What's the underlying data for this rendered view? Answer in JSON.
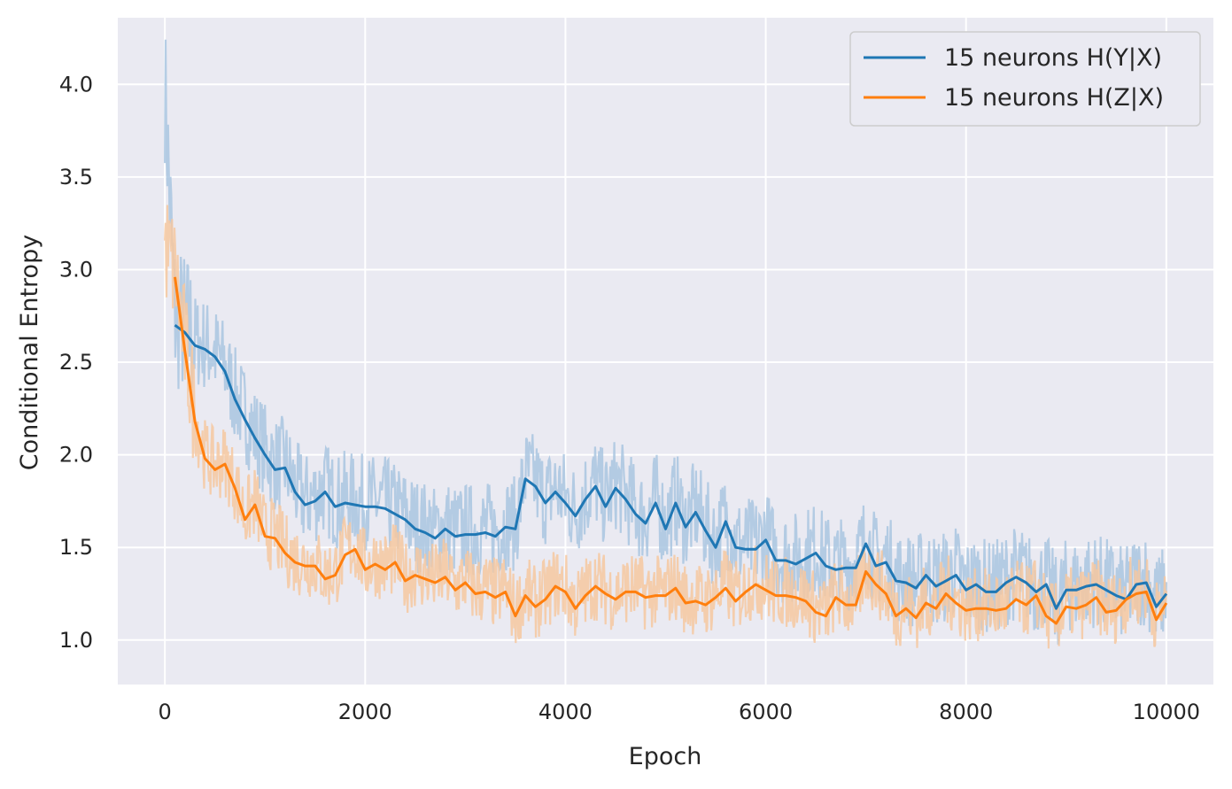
{
  "chart_data": {
    "type": "line",
    "xlabel": "Epoch",
    "ylabel": "Conditional Entropy",
    "xlim": [
      -470,
      10470
    ],
    "ylim": [
      0.76,
      4.36
    ],
    "xticks": [
      0,
      2000,
      4000,
      6000,
      8000,
      10000
    ],
    "xtick_labels": [
      "0",
      "2000",
      "4000",
      "6000",
      "8000",
      "10000"
    ],
    "yticks": [
      1.0,
      1.5,
      2.0,
      2.5,
      3.0,
      3.5,
      4.0
    ],
    "ytick_labels": [
      "1.0",
      "1.5",
      "2.0",
      "2.5",
      "3.0",
      "3.5",
      "4.0"
    ],
    "grid": true,
    "legend_position": "top-right",
    "x": [
      100,
      200,
      300,
      400,
      500,
      600,
      700,
      800,
      900,
      1000,
      1100,
      1200,
      1300,
      1400,
      1500,
      1600,
      1700,
      1800,
      1900,
      2000,
      2100,
      2200,
      2300,
      2400,
      2500,
      2600,
      2700,
      2800,
      2900,
      3000,
      3100,
      3200,
      3300,
      3400,
      3500,
      3600,
      3700,
      3800,
      3900,
      4000,
      4100,
      4200,
      4300,
      4400,
      4500,
      4600,
      4700,
      4800,
      4900,
      5000,
      5100,
      5200,
      5300,
      5400,
      5500,
      5600,
      5700,
      5800,
      5900,
      6000,
      6100,
      6200,
      6300,
      6400,
      6500,
      6600,
      6700,
      6800,
      6900,
      7000,
      7100,
      7200,
      7300,
      7400,
      7500,
      7600,
      7700,
      7800,
      7900,
      8000,
      8100,
      8200,
      8300,
      8400,
      8500,
      8600,
      8700,
      8800,
      8900,
      9000,
      9100,
      9200,
      9300,
      9400,
      9500,
      9600,
      9700,
      9800,
      9900,
      10000
    ],
    "series": [
      {
        "name": "15 neurons H(Y|X)",
        "color": "#1f77b4",
        "values": [
          2.7,
          2.66,
          2.59,
          2.57,
          2.53,
          2.45,
          2.3,
          2.19,
          2.09,
          2.0,
          1.92,
          1.93,
          1.8,
          1.73,
          1.75,
          1.8,
          1.72,
          1.74,
          1.73,
          1.72,
          1.72,
          1.71,
          1.68,
          1.65,
          1.6,
          1.58,
          1.55,
          1.6,
          1.56,
          1.57,
          1.57,
          1.58,
          1.56,
          1.61,
          1.6,
          1.87,
          1.83,
          1.74,
          1.8,
          1.74,
          1.67,
          1.76,
          1.83,
          1.72,
          1.82,
          1.76,
          1.68,
          1.63,
          1.74,
          1.6,
          1.74,
          1.61,
          1.69,
          1.59,
          1.5,
          1.64,
          1.5,
          1.49,
          1.49,
          1.54,
          1.43,
          1.43,
          1.41,
          1.44,
          1.47,
          1.4,
          1.38,
          1.39,
          1.39,
          1.52,
          1.4,
          1.42,
          1.32,
          1.31,
          1.28,
          1.35,
          1.29,
          1.32,
          1.35,
          1.27,
          1.3,
          1.26,
          1.26,
          1.31,
          1.34,
          1.31,
          1.26,
          1.3,
          1.17,
          1.27,
          1.27,
          1.29,
          1.3,
          1.27,
          1.24,
          1.22,
          1.3,
          1.31,
          1.18,
          1.25
        ]
      },
      {
        "name": "15 neurons H(Z|X)",
        "color": "#ff7f0e",
        "values": [
          2.96,
          2.56,
          2.18,
          1.98,
          1.92,
          1.95,
          1.82,
          1.65,
          1.73,
          1.56,
          1.55,
          1.47,
          1.42,
          1.4,
          1.4,
          1.33,
          1.35,
          1.46,
          1.49,
          1.38,
          1.41,
          1.38,
          1.42,
          1.32,
          1.35,
          1.33,
          1.31,
          1.34,
          1.27,
          1.31,
          1.25,
          1.26,
          1.23,
          1.26,
          1.13,
          1.24,
          1.18,
          1.22,
          1.29,
          1.26,
          1.17,
          1.24,
          1.29,
          1.25,
          1.22,
          1.26,
          1.26,
          1.23,
          1.24,
          1.24,
          1.28,
          1.2,
          1.21,
          1.19,
          1.23,
          1.28,
          1.21,
          1.26,
          1.3,
          1.27,
          1.24,
          1.24,
          1.23,
          1.21,
          1.15,
          1.13,
          1.23,
          1.19,
          1.19,
          1.37,
          1.3,
          1.25,
          1.13,
          1.17,
          1.12,
          1.2,
          1.17,
          1.25,
          1.2,
          1.16,
          1.17,
          1.17,
          1.16,
          1.17,
          1.22,
          1.19,
          1.24,
          1.13,
          1.09,
          1.18,
          1.17,
          1.19,
          1.23,
          1.15,
          1.16,
          1.22,
          1.25,
          1.26,
          1.11,
          1.2
        ]
      }
    ],
    "raw_band_color_blue": "#a9c6e0",
    "raw_band_color_orange": "#f6c8a0"
  }
}
